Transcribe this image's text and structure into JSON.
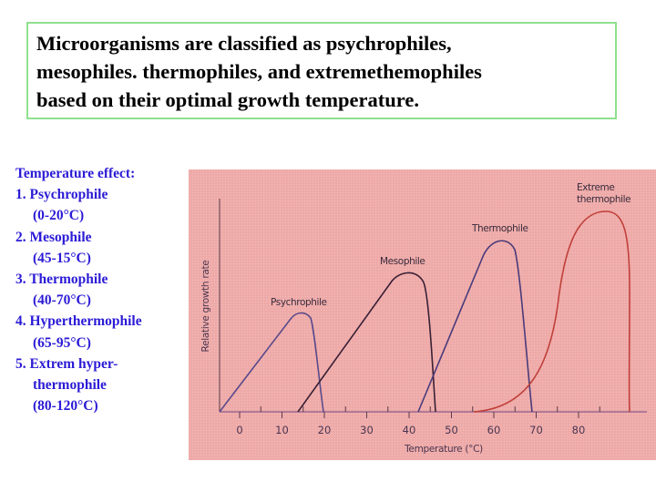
{
  "title": {
    "lines": [
      "Microorganisms are classified as psychrophiles,",
      "mesophiles. thermophiles, and extremethemophiles",
      "based on their optimal growth temperature."
    ]
  },
  "legend": {
    "heading": "Temperature effect:",
    "items": [
      {
        "label": "1. Psychrophile",
        "range": "(0-20°C)"
      },
      {
        "label": "2. Mesophile",
        "range": "(45-15°C)"
      },
      {
        "label": "3. Thermophile",
        "range": "(40-70°C)"
      },
      {
        "label": "4. Hyperthermophile",
        "range": "(65-95°C)"
      },
      {
        "label": "5. Extrem hyper-",
        "label2": "thermophile",
        "range": "(80-120°C)"
      }
    ]
  },
  "colors": {
    "title_border": "#8fe08f",
    "legend_text": "#2b1bd6",
    "panel_bg": "#eeaaa8",
    "psychrophile": "#5a4a8a",
    "mesophile": "#3a2035",
    "thermophile": "#4a3a7a",
    "extreme": "#c0403a"
  },
  "chart_data": {
    "type": "line",
    "title": "",
    "xlabel": "Temperature (°C)",
    "ylabel": "Relative growth rate",
    "x_ticks": [
      0,
      10,
      20,
      30,
      40,
      50,
      60,
      70,
      80
    ],
    "x_tick_labels": [
      "0",
      "10",
      "20",
      "30",
      "40",
      "50",
      "60",
      "70",
      "80"
    ],
    "xlim": [
      -5,
      95
    ],
    "ylim": [
      0,
      1
    ],
    "grid": false,
    "legend_position": "inline curve labels",
    "series": [
      {
        "name": "Psychrophile",
        "start": -5,
        "optimum": 14,
        "end": 20,
        "peak_height": 0.47
      },
      {
        "name": "Mesophile",
        "start": 14,
        "optimum": 40,
        "end": 46,
        "peak_height": 0.66
      },
      {
        "name": "Thermophile",
        "start": 42,
        "optimum": 62,
        "end": 69,
        "peak_height": 0.81
      },
      {
        "name": "Extreme thermophile",
        "start": 55,
        "optimum": 86,
        "end": 92,
        "peak_height": 0.94
      }
    ]
  }
}
